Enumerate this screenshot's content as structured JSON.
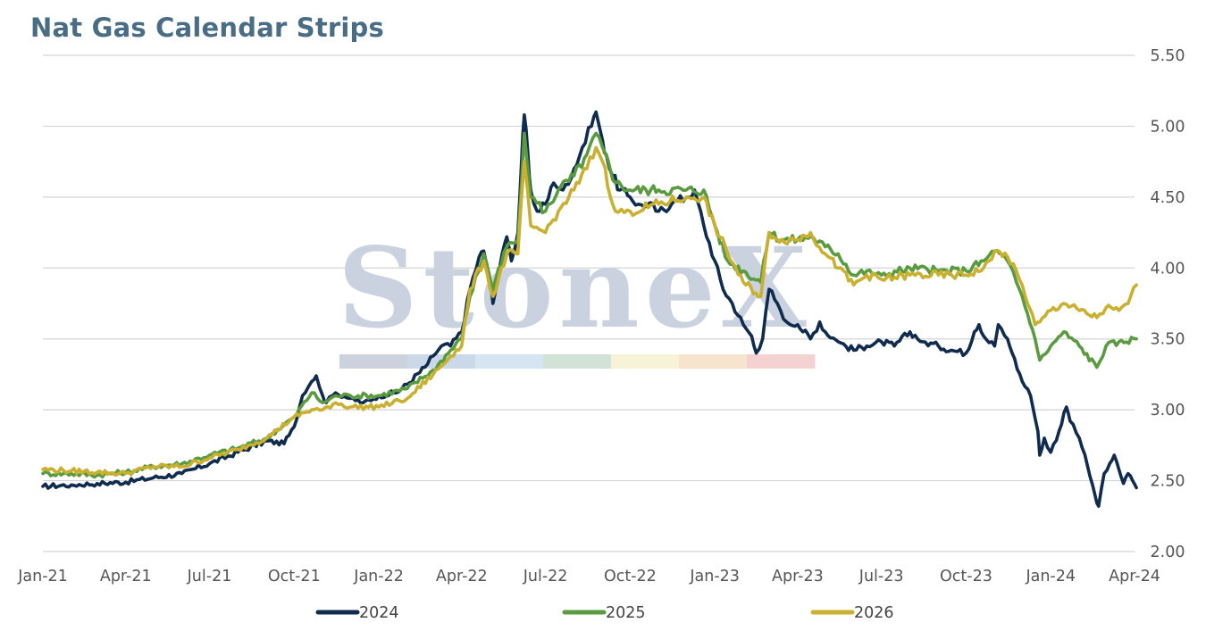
{
  "title": "Nat Gas Calendar Strips",
  "watermark": {
    "text": "StoneX",
    "stripe_colors": [
      "#ccd3de",
      "#cbd8e8",
      "#d6e5f2",
      "#d2e2d7",
      "#f6f3d9",
      "#f7e4cd",
      "#f3d2d1"
    ]
  },
  "chart_data": {
    "type": "line",
    "title": "Nat Gas Calendar Strips",
    "xlabel": "",
    "ylabel": "",
    "x_range": [
      "2021-01-01",
      "2024-04-01"
    ],
    "x_tick_labels": [
      "Jan-21",
      "Apr-21",
      "Jul-21",
      "Oct-21",
      "Jan-22",
      "Apr-22",
      "Jul-22",
      "Oct-22",
      "Jan-23",
      "Apr-23",
      "Jul-23",
      "Oct-23",
      "Jan-24",
      "Apr-24"
    ],
    "x_tick_dates": [
      "2021-01-01",
      "2021-04-01",
      "2021-07-01",
      "2021-10-01",
      "2022-01-01",
      "2022-04-01",
      "2022-07-01",
      "2022-10-01",
      "2023-01-01",
      "2023-04-01",
      "2023-07-01",
      "2023-10-01",
      "2024-01-01",
      "2024-04-01"
    ],
    "y_axis_position": "right",
    "ylim": [
      2.0,
      5.5
    ],
    "y_ticks": [
      "2.00",
      "2.50",
      "3.00",
      "3.50",
      "4.00",
      "4.50",
      "5.00",
      "5.50"
    ],
    "grid": true,
    "legend_position": "bottom",
    "series": [
      {
        "name": "2024",
        "color": "#0f2c4f",
        "points": [
          [
            "2021-01-01",
            2.46
          ],
          [
            "2021-02-01",
            2.47
          ],
          [
            "2021-03-01",
            2.48
          ],
          [
            "2021-04-01",
            2.49
          ],
          [
            "2021-05-01",
            2.52
          ],
          [
            "2021-06-01",
            2.55
          ],
          [
            "2021-07-01",
            2.62
          ],
          [
            "2021-08-01",
            2.7
          ],
          [
            "2021-09-01",
            2.78
          ],
          [
            "2021-09-20",
            2.76
          ],
          [
            "2021-10-01",
            2.88
          ],
          [
            "2021-10-10",
            3.1
          ],
          [
            "2021-10-20",
            3.2
          ],
          [
            "2021-10-25",
            3.24
          ],
          [
            "2021-11-01",
            3.1
          ],
          [
            "2021-11-05",
            3.05
          ],
          [
            "2021-11-15",
            3.12
          ],
          [
            "2021-12-01",
            3.08
          ],
          [
            "2021-12-15",
            3.05
          ],
          [
            "2022-01-01",
            3.1
          ],
          [
            "2022-01-20",
            3.12
          ],
          [
            "2022-02-01",
            3.18
          ],
          [
            "2022-02-20",
            3.3
          ],
          [
            "2022-03-01",
            3.38
          ],
          [
            "2022-03-10",
            3.45
          ],
          [
            "2022-03-20",
            3.45
          ],
          [
            "2022-04-01",
            3.55
          ],
          [
            "2022-04-10",
            3.85
          ],
          [
            "2022-04-20",
            4.08
          ],
          [
            "2022-04-25",
            4.12
          ],
          [
            "2022-05-01",
            3.95
          ],
          [
            "2022-05-05",
            3.75
          ],
          [
            "2022-05-15",
            4.1
          ],
          [
            "2022-05-20",
            4.22
          ],
          [
            "2022-05-25",
            4.05
          ],
          [
            "2022-06-01",
            4.25
          ],
          [
            "2022-06-05",
            4.75
          ],
          [
            "2022-06-08",
            5.08
          ],
          [
            "2022-06-12",
            4.8
          ],
          [
            "2022-06-15",
            4.55
          ],
          [
            "2022-06-22",
            4.4
          ],
          [
            "2022-07-01",
            4.45
          ],
          [
            "2022-07-10",
            4.6
          ],
          [
            "2022-07-20",
            4.55
          ],
          [
            "2022-08-01",
            4.7
          ],
          [
            "2022-08-10",
            4.85
          ],
          [
            "2022-08-20",
            5.0
          ],
          [
            "2022-08-25",
            5.1
          ],
          [
            "2022-09-01",
            4.9
          ],
          [
            "2022-09-05",
            4.8
          ],
          [
            "2022-09-12",
            4.65
          ],
          [
            "2022-09-20",
            4.55
          ],
          [
            "2022-10-01",
            4.5
          ],
          [
            "2022-10-10",
            4.45
          ],
          [
            "2022-10-20",
            4.45
          ],
          [
            "2022-11-01",
            4.4
          ],
          [
            "2022-11-15",
            4.45
          ],
          [
            "2022-12-01",
            4.5
          ],
          [
            "2022-12-10",
            4.55
          ],
          [
            "2022-12-20",
            4.3
          ],
          [
            "2023-01-01",
            4.05
          ],
          [
            "2023-01-10",
            3.85
          ],
          [
            "2023-01-20",
            3.75
          ],
          [
            "2023-02-01",
            3.6
          ],
          [
            "2023-02-10",
            3.52
          ],
          [
            "2023-02-15",
            3.4
          ],
          [
            "2023-02-22",
            3.5
          ],
          [
            "2023-03-01",
            3.85
          ],
          [
            "2023-03-10",
            3.75
          ],
          [
            "2023-03-20",
            3.62
          ],
          [
            "2023-04-01",
            3.6
          ],
          [
            "2023-04-15",
            3.5
          ],
          [
            "2023-04-25",
            3.62
          ],
          [
            "2023-05-01",
            3.55
          ],
          [
            "2023-05-15",
            3.48
          ],
          [
            "2023-06-01",
            3.42
          ],
          [
            "2023-06-15",
            3.45
          ],
          [
            "2023-07-01",
            3.48
          ],
          [
            "2023-07-15",
            3.45
          ],
          [
            "2023-08-01",
            3.55
          ],
          [
            "2023-08-15",
            3.48
          ],
          [
            "2023-09-01",
            3.45
          ],
          [
            "2023-09-15",
            3.42
          ],
          [
            "2023-10-01",
            3.4
          ],
          [
            "2023-10-10",
            3.55
          ],
          [
            "2023-10-15",
            3.6
          ],
          [
            "2023-10-20",
            3.52
          ],
          [
            "2023-11-01",
            3.45
          ],
          [
            "2023-11-05",
            3.6
          ],
          [
            "2023-11-15",
            3.5
          ],
          [
            "2023-11-20",
            3.4
          ],
          [
            "2023-12-01",
            3.2
          ],
          [
            "2023-12-10",
            3.1
          ],
          [
            "2023-12-18",
            2.85
          ],
          [
            "2023-12-20",
            2.68
          ],
          [
            "2023-12-25",
            2.8
          ],
          [
            "2024-01-01",
            2.7
          ],
          [
            "2024-01-10",
            2.85
          ],
          [
            "2024-01-18",
            3.02
          ],
          [
            "2024-01-22",
            2.92
          ],
          [
            "2024-02-01",
            2.8
          ],
          [
            "2024-02-10",
            2.6
          ],
          [
            "2024-02-18",
            2.4
          ],
          [
            "2024-02-22",
            2.32
          ],
          [
            "2024-02-28",
            2.55
          ],
          [
            "2024-03-05",
            2.62
          ],
          [
            "2024-03-10",
            2.68
          ],
          [
            "2024-03-15",
            2.58
          ],
          [
            "2024-03-20",
            2.48
          ],
          [
            "2024-03-25",
            2.55
          ],
          [
            "2024-03-30",
            2.5
          ],
          [
            "2024-04-03",
            2.45
          ]
        ]
      },
      {
        "name": "2025",
        "color": "#5a9b40",
        "points": [
          [
            "2021-01-01",
            2.55
          ],
          [
            "2021-02-01",
            2.55
          ],
          [
            "2021-03-01",
            2.54
          ],
          [
            "2021-04-01",
            2.56
          ],
          [
            "2021-05-01",
            2.6
          ],
          [
            "2021-06-01",
            2.62
          ],
          [
            "2021-07-01",
            2.68
          ],
          [
            "2021-08-01",
            2.73
          ],
          [
            "2021-09-01",
            2.8
          ],
          [
            "2021-10-01",
            2.95
          ],
          [
            "2021-10-20",
            3.12
          ],
          [
            "2021-11-01",
            3.05
          ],
          [
            "2021-11-15",
            3.1
          ],
          [
            "2021-12-01",
            3.1
          ],
          [
            "2022-01-01",
            3.1
          ],
          [
            "2022-02-01",
            3.15
          ],
          [
            "2022-03-01",
            3.28
          ],
          [
            "2022-03-20",
            3.42
          ],
          [
            "2022-04-01",
            3.5
          ],
          [
            "2022-04-10",
            3.8
          ],
          [
            "2022-04-25",
            4.1
          ],
          [
            "2022-05-05",
            3.85
          ],
          [
            "2022-05-20",
            4.15
          ],
          [
            "2022-06-01",
            4.2
          ],
          [
            "2022-06-08",
            4.95
          ],
          [
            "2022-06-15",
            4.5
          ],
          [
            "2022-07-01",
            4.4
          ],
          [
            "2022-07-15",
            4.55
          ],
          [
            "2022-08-01",
            4.65
          ],
          [
            "2022-08-15",
            4.8
          ],
          [
            "2022-08-25",
            4.95
          ],
          [
            "2022-09-01",
            4.85
          ],
          [
            "2022-09-15",
            4.6
          ],
          [
            "2022-10-01",
            4.55
          ],
          [
            "2022-11-01",
            4.55
          ],
          [
            "2022-12-01",
            4.55
          ],
          [
            "2022-12-20",
            4.55
          ],
          [
            "2023-01-01",
            4.3
          ],
          [
            "2023-01-15",
            4.05
          ],
          [
            "2023-02-01",
            3.98
          ],
          [
            "2023-02-20",
            3.9
          ],
          [
            "2023-03-01",
            4.25
          ],
          [
            "2023-03-15",
            4.2
          ],
          [
            "2023-04-01",
            4.2
          ],
          [
            "2023-04-15",
            4.22
          ],
          [
            "2023-05-01",
            4.15
          ],
          [
            "2023-05-15",
            4.1
          ],
          [
            "2023-06-01",
            3.95
          ],
          [
            "2023-06-15",
            3.98
          ],
          [
            "2023-07-01",
            3.95
          ],
          [
            "2023-08-01",
            4.0
          ],
          [
            "2023-09-01",
            3.98
          ],
          [
            "2023-10-01",
            3.98
          ],
          [
            "2023-10-20",
            4.05
          ],
          [
            "2023-11-01",
            4.12
          ],
          [
            "2023-11-15",
            4.05
          ],
          [
            "2023-12-01",
            3.8
          ],
          [
            "2023-12-15",
            3.5
          ],
          [
            "2023-12-20",
            3.35
          ],
          [
            "2024-01-01",
            3.45
          ],
          [
            "2024-01-15",
            3.55
          ],
          [
            "2024-02-01",
            3.45
          ],
          [
            "2024-02-20",
            3.3
          ],
          [
            "2024-03-01",
            3.45
          ],
          [
            "2024-03-15",
            3.48
          ],
          [
            "2024-04-03",
            3.5
          ]
        ]
      },
      {
        "name": "2026",
        "color": "#c9b030",
        "points": [
          [
            "2021-01-01",
            2.58
          ],
          [
            "2021-02-01",
            2.57
          ],
          [
            "2021-03-01",
            2.56
          ],
          [
            "2021-04-01",
            2.55
          ],
          [
            "2021-05-01",
            2.6
          ],
          [
            "2021-06-01",
            2.6
          ],
          [
            "2021-07-01",
            2.66
          ],
          [
            "2021-08-01",
            2.72
          ],
          [
            "2021-09-01",
            2.8
          ],
          [
            "2021-10-01",
            2.95
          ],
          [
            "2021-10-20",
            3.0
          ],
          [
            "2021-11-01",
            3.0
          ],
          [
            "2021-11-15",
            3.05
          ],
          [
            "2021-12-01",
            3.02
          ],
          [
            "2022-01-01",
            3.02
          ],
          [
            "2022-02-01",
            3.08
          ],
          [
            "2022-03-01",
            3.25
          ],
          [
            "2022-03-20",
            3.38
          ],
          [
            "2022-04-01",
            3.45
          ],
          [
            "2022-04-10",
            3.85
          ],
          [
            "2022-04-25",
            4.05
          ],
          [
            "2022-05-05",
            3.8
          ],
          [
            "2022-05-20",
            4.1
          ],
          [
            "2022-06-01",
            4.1
          ],
          [
            "2022-06-08",
            4.75
          ],
          [
            "2022-06-15",
            4.3
          ],
          [
            "2022-07-01",
            4.25
          ],
          [
            "2022-07-15",
            4.4
          ],
          [
            "2022-08-01",
            4.55
          ],
          [
            "2022-08-15",
            4.7
          ],
          [
            "2022-08-25",
            4.85
          ],
          [
            "2022-09-01",
            4.75
          ],
          [
            "2022-09-15",
            4.4
          ],
          [
            "2022-10-01",
            4.4
          ],
          [
            "2022-11-01",
            4.45
          ],
          [
            "2022-12-01",
            4.5
          ],
          [
            "2022-12-20",
            4.5
          ],
          [
            "2023-01-01",
            4.3
          ],
          [
            "2023-01-15",
            4.1
          ],
          [
            "2023-02-01",
            3.9
          ],
          [
            "2023-02-20",
            3.8
          ],
          [
            "2023-03-01",
            4.25
          ],
          [
            "2023-03-15",
            4.2
          ],
          [
            "2023-04-01",
            4.2
          ],
          [
            "2023-04-15",
            4.25
          ],
          [
            "2023-05-01",
            4.1
          ],
          [
            "2023-05-15",
            4.0
          ],
          [
            "2023-06-01",
            3.88
          ],
          [
            "2023-06-15",
            3.95
          ],
          [
            "2023-07-01",
            3.92
          ],
          [
            "2023-08-01",
            3.95
          ],
          [
            "2023-09-01",
            3.95
          ],
          [
            "2023-10-01",
            3.95
          ],
          [
            "2023-10-20",
            4.0
          ],
          [
            "2023-11-01",
            4.12
          ],
          [
            "2023-11-15",
            4.08
          ],
          [
            "2023-12-01",
            3.88
          ],
          [
            "2023-12-15",
            3.6
          ],
          [
            "2023-12-20",
            3.62
          ],
          [
            "2024-01-01",
            3.7
          ],
          [
            "2024-01-15",
            3.75
          ],
          [
            "2024-02-01",
            3.7
          ],
          [
            "2024-02-20",
            3.65
          ],
          [
            "2024-03-01",
            3.72
          ],
          [
            "2024-03-15",
            3.7
          ],
          [
            "2024-03-25",
            3.75
          ],
          [
            "2024-04-03",
            3.88
          ]
        ]
      }
    ]
  }
}
